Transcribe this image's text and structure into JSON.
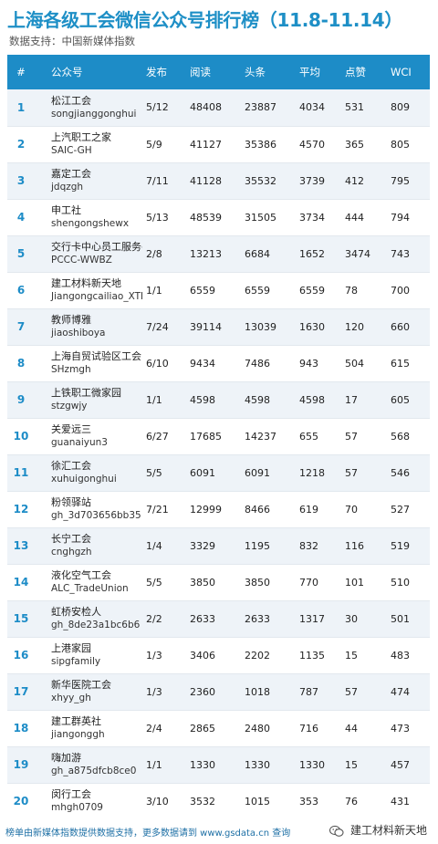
{
  "header": {
    "title": "上海各级工会微信公众号排行榜（11.8-11.14）",
    "subtitle": "数据支持：中国新媒体指数"
  },
  "columns": [
    "#",
    "公众号",
    "发布",
    "阅读",
    "头条",
    "平均",
    "点赞",
    "WCI"
  ],
  "rows": [
    {
      "rank": "1",
      "name": "松江工会",
      "id": "songjianggonghui",
      "publish": "5/12",
      "reads": "48408",
      "headline": "23887",
      "avg": "4034",
      "likes": "531",
      "wci": "809"
    },
    {
      "rank": "2",
      "name": "上汽职工之家",
      "id": "SAIC-GH",
      "publish": "5/9",
      "reads": "41127",
      "headline": "35386",
      "avg": "4570",
      "likes": "365",
      "wci": "805"
    },
    {
      "rank": "3",
      "name": "嘉定工会",
      "id": "jdqzgh",
      "publish": "7/11",
      "reads": "41128",
      "headline": "35532",
      "avg": "3739",
      "likes": "412",
      "wci": "795"
    },
    {
      "rank": "4",
      "name": "申工社",
      "id": "shengongshewx",
      "publish": "5/13",
      "reads": "48539",
      "headline": "31505",
      "avg": "3734",
      "likes": "444",
      "wci": "794"
    },
    {
      "rank": "5",
      "name": "交行卡中心员工服务平台",
      "id": "PCCC-WWBZ",
      "publish": "2/8",
      "reads": "13213",
      "headline": "6684",
      "avg": "1652",
      "likes": "3474",
      "wci": "743"
    },
    {
      "rank": "6",
      "name": "建工材料新天地",
      "id": "Jiangongcailiao_XTD",
      "publish": "1/1",
      "reads": "6559",
      "headline": "6559",
      "avg": "6559",
      "likes": "78",
      "wci": "700"
    },
    {
      "rank": "7",
      "name": "教师博雅",
      "id": "jiaoshiboya",
      "publish": "7/24",
      "reads": "39114",
      "headline": "13039",
      "avg": "1630",
      "likes": "120",
      "wci": "660"
    },
    {
      "rank": "8",
      "name": "上海自贸试验区工会",
      "id": "SHzmgh",
      "publish": "6/10",
      "reads": "9434",
      "headline": "7486",
      "avg": "943",
      "likes": "504",
      "wci": "615"
    },
    {
      "rank": "9",
      "name": "上铁职工微家园",
      "id": "stzgwjy",
      "publish": "1/1",
      "reads": "4598",
      "headline": "4598",
      "avg": "4598",
      "likes": "17",
      "wci": "605"
    },
    {
      "rank": "10",
      "name": "关爱远三",
      "id": "guanaiyun3",
      "publish": "6/27",
      "reads": "17685",
      "headline": "14237",
      "avg": "655",
      "likes": "57",
      "wci": "568"
    },
    {
      "rank": "11",
      "name": "徐汇工会",
      "id": "xuhuigonghui",
      "publish": "5/5",
      "reads": "6091",
      "headline": "6091",
      "avg": "1218",
      "likes": "57",
      "wci": "546"
    },
    {
      "rank": "12",
      "name": "粉领驿站",
      "id": "gh_3d703656bb35",
      "publish": "7/21",
      "reads": "12999",
      "headline": "8466",
      "avg": "619",
      "likes": "70",
      "wci": "527"
    },
    {
      "rank": "13",
      "name": "长宁工会",
      "id": "cnghgzh",
      "publish": "1/4",
      "reads": "3329",
      "headline": "1195",
      "avg": "832",
      "likes": "116",
      "wci": "519"
    },
    {
      "rank": "14",
      "name": "液化空气工会",
      "id": "ALC_TradeUnion",
      "publish": "5/5",
      "reads": "3850",
      "headline": "3850",
      "avg": "770",
      "likes": "101",
      "wci": "510"
    },
    {
      "rank": "15",
      "name": "虹桥安检人",
      "id": "gh_8de23a1bc6b6",
      "publish": "2/2",
      "reads": "2633",
      "headline": "2633",
      "avg": "1317",
      "likes": "30",
      "wci": "501"
    },
    {
      "rank": "16",
      "name": "上港家园",
      "id": "sipgfamily",
      "publish": "1/3",
      "reads": "3406",
      "headline": "2202",
      "avg": "1135",
      "likes": "15",
      "wci": "483"
    },
    {
      "rank": "17",
      "name": "新华医院工会",
      "id": "xhyy_gh",
      "publish": "1/3",
      "reads": "2360",
      "headline": "1018",
      "avg": "787",
      "likes": "57",
      "wci": "474"
    },
    {
      "rank": "18",
      "name": "建工群英社",
      "id": "jiangonggh",
      "publish": "2/4",
      "reads": "2865",
      "headline": "2480",
      "avg": "716",
      "likes": "44",
      "wci": "473"
    },
    {
      "rank": "19",
      "name": "嗨加游",
      "id": "gh_a875dfcb8ce0",
      "publish": "1/1",
      "reads": "1330",
      "headline": "1330",
      "avg": "1330",
      "likes": "15",
      "wci": "457"
    },
    {
      "rank": "20",
      "name": "闵行工会",
      "id": "mhgh0709",
      "publish": "3/10",
      "reads": "3532",
      "headline": "1015",
      "avg": "353",
      "likes": "76",
      "wci": "431"
    }
  ],
  "footer": {
    "text": "榜单由新媒体指数提供数据支持，更多数据请到 www.gsdata.cn 查询",
    "wechat_label": "建工材料新天地",
    "wechat_icon": "wechat-icon"
  },
  "colors": {
    "title": "#1e8fc6",
    "header_bg": "#1d8cc7",
    "rank": "#1d8cc7",
    "row_alt": "#eef3f8"
  }
}
